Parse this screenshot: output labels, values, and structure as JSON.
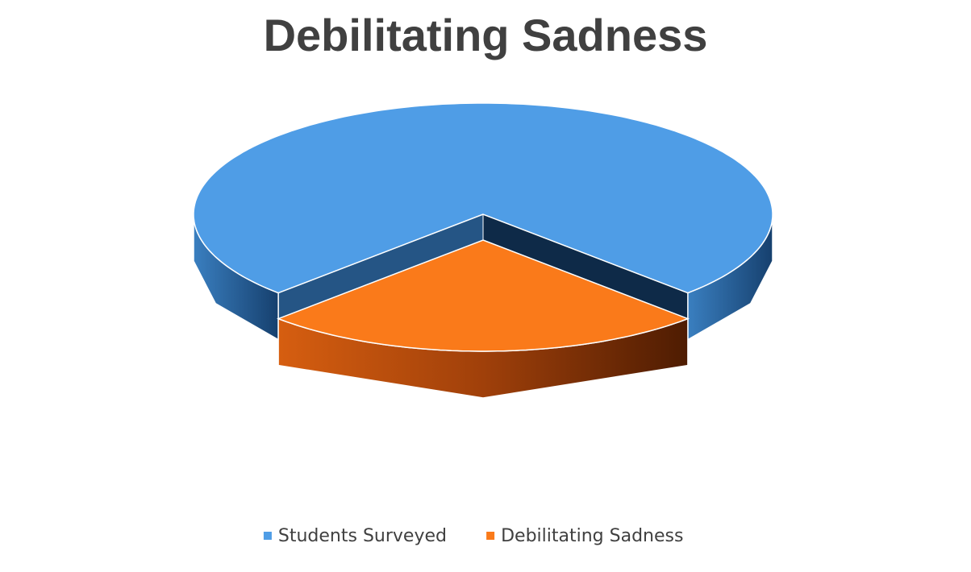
{
  "chart_data": {
    "type": "pie",
    "title": "Debilitating Sadness",
    "categories": [
      "Students Surveyed",
      "Debilitating Sadness"
    ],
    "values": [
      75,
      25
    ],
    "colors": [
      "#4f9de6",
      "#fa7a1a"
    ],
    "legend": "bottom"
  }
}
